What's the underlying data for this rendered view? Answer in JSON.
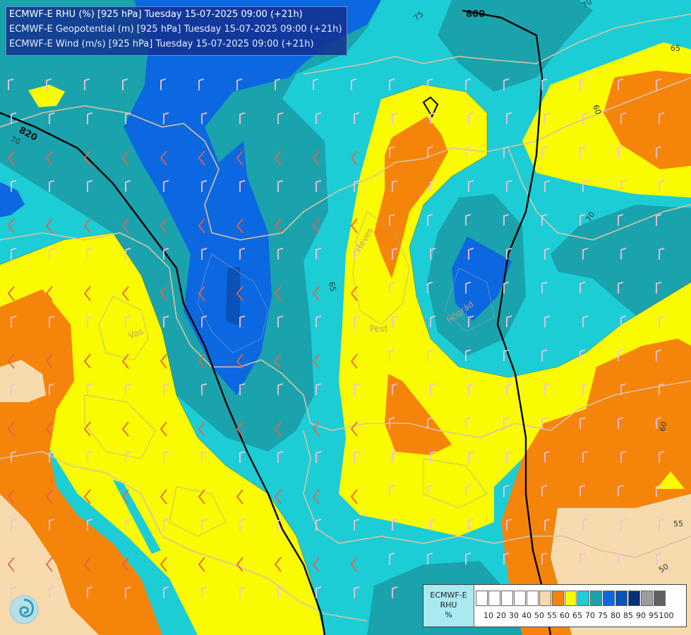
{
  "header": {
    "line1": "ECMWF-E RHU (%) [925 hPa] Tuesday 15-07-2025 09:00 (+21h)",
    "line2": "ECMWF-E Geopotential (m) [925 hPa] Tuesday 15-07-2025 09:00 (+21h)",
    "line3": "ECMWF-E Wind (m/s) [925 hPa] Tuesday 15-07-2025 09:00 (+21h)"
  },
  "geopotential_labels": {
    "a": "800",
    "b": "820"
  },
  "rhu_labels": {
    "a": "75",
    "b": "70",
    "c": "65",
    "d": "60",
    "e": "70",
    "f": "65",
    "g": "70",
    "h": "60",
    "i": "55",
    "j": "50"
  },
  "places": {
    "pest": "Pest",
    "nograd": "Nógrád",
    "heves": "Heves",
    "vas": "Vas"
  },
  "scale": {
    "title_line1": "ECMWF-E",
    "title_line2": "RHU",
    "title_line3": "%",
    "ticks": [
      "10",
      "20",
      "30",
      "40",
      "50",
      "55",
      "60",
      "65",
      "70",
      "75",
      "80",
      "85",
      "90",
      "95",
      "100"
    ],
    "colors": [
      "#ffffff",
      "#ffffff",
      "#ffffff",
      "#ffffff",
      "#ffffff",
      "#f7dbae",
      "#f5840b",
      "#fafa00",
      "#1ccdd6",
      "#1aa3ac",
      "#0b68e0",
      "#0a52b5",
      "#08307a",
      "#9c9c9c",
      "#606060"
    ]
  },
  "colors": {
    "rh_50_55": "#f7dbae",
    "rh_55_60": "#f5840b",
    "rh_60_65": "#fafa00",
    "rh_65_70": "#1ccdd6",
    "rh_70_75": "#1aa3ac",
    "rh_75_80": "#0b68e0",
    "rh_80_85": "#0a52b5",
    "wind_barb_dry": "#e8604a",
    "wind_barb_moist": "#f3c0d8"
  }
}
